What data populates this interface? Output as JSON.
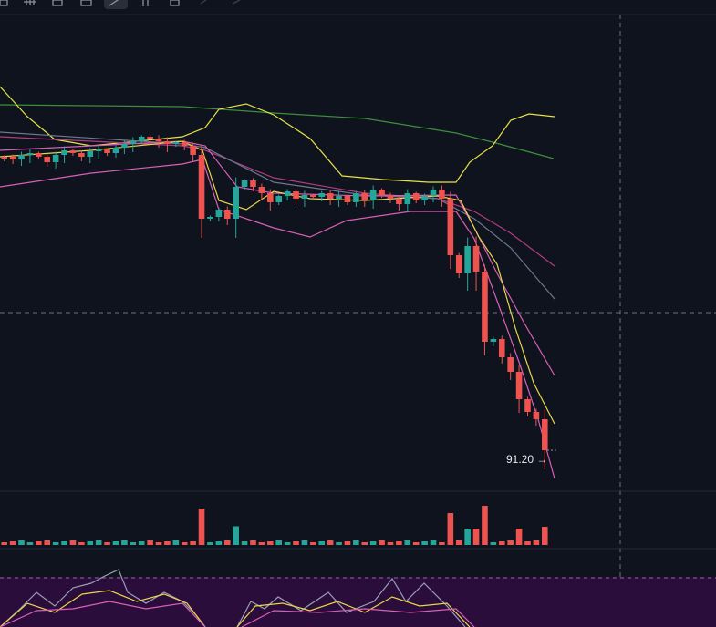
{
  "price_label": "91.20 →"
}
